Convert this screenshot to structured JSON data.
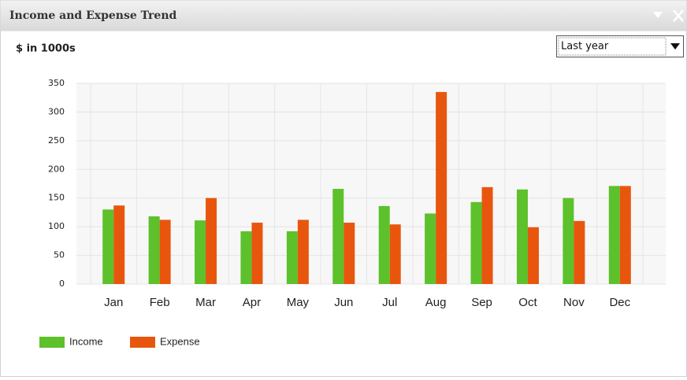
{
  "widget": {
    "title": "Income and Expense Trend",
    "filter": "Last year"
  },
  "chart_data": {
    "type": "bar",
    "ylabel": "$ in 1000s",
    "categories": [
      "Jan",
      "Feb",
      "Mar",
      "Apr",
      "May",
      "Jun",
      "Jul",
      "Aug",
      "Sep",
      "Oct",
      "Nov",
      "Dec"
    ],
    "series": [
      {
        "name": "Income",
        "color": "#5cc12a",
        "values": [
          130,
          118,
          111,
          92,
          92,
          166,
          136,
          123,
          143,
          165,
          150,
          171
        ]
      },
      {
        "name": "Expense",
        "color": "#e8560e",
        "values": [
          137,
          112,
          150,
          107,
          112,
          107,
          104,
          335,
          169,
          99,
          110,
          171
        ]
      }
    ],
    "ylim": [
      0,
      350
    ],
    "yticks": [
      0,
      50,
      100,
      150,
      200,
      250,
      300,
      350
    ],
    "grid": true
  }
}
